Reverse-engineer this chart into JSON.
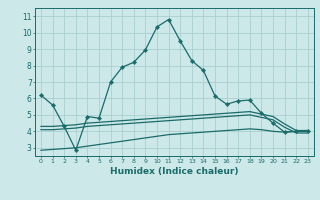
{
  "xlabel": "Humidex (Indice chaleur)",
  "bg_color": "#cce8e8",
  "grid_color": "#aacfcf",
  "line_color": "#1a6b6b",
  "xlim": [
    -0.5,
    23.5
  ],
  "ylim": [
    2.5,
    11.5
  ],
  "xticks": [
    0,
    1,
    2,
    3,
    4,
    5,
    6,
    7,
    8,
    9,
    10,
    11,
    12,
    13,
    14,
    15,
    16,
    17,
    18,
    19,
    20,
    21,
    22,
    23
  ],
  "yticks": [
    3,
    4,
    5,
    6,
    7,
    8,
    9,
    10,
    11
  ],
  "series1_x": [
    0,
    1,
    2,
    3,
    4,
    5,
    6,
    7,
    8,
    9,
    10,
    11,
    12,
    13,
    14,
    15,
    16,
    17,
    18,
    19,
    20,
    21,
    22,
    23
  ],
  "series1_y": [
    6.2,
    5.6,
    4.3,
    2.85,
    4.9,
    4.8,
    7.0,
    7.9,
    8.2,
    8.95,
    10.35,
    10.8,
    9.5,
    8.3,
    7.7,
    6.15,
    5.65,
    5.85,
    5.9,
    5.1,
    4.5,
    3.95,
    4.0,
    4.05
  ],
  "series2_x": [
    0,
    1,
    2,
    3,
    4,
    5,
    6,
    7,
    8,
    9,
    10,
    11,
    12,
    13,
    14,
    15,
    16,
    17,
    18,
    19,
    20,
    21,
    22,
    23
  ],
  "series2_y": [
    4.3,
    4.3,
    4.35,
    4.4,
    4.5,
    4.55,
    4.6,
    4.65,
    4.7,
    4.75,
    4.8,
    4.85,
    4.9,
    4.95,
    5.0,
    5.05,
    5.1,
    5.15,
    5.2,
    5.05,
    4.9,
    4.45,
    4.05,
    4.05
  ],
  "series3_x": [
    0,
    1,
    2,
    3,
    4,
    5,
    6,
    7,
    8,
    9,
    10,
    11,
    12,
    13,
    14,
    15,
    16,
    17,
    18,
    19,
    20,
    21,
    22,
    23
  ],
  "series3_y": [
    4.1,
    4.1,
    4.15,
    4.2,
    4.3,
    4.35,
    4.4,
    4.45,
    4.5,
    4.55,
    4.6,
    4.65,
    4.7,
    4.75,
    4.8,
    4.85,
    4.9,
    4.95,
    5.0,
    4.85,
    4.7,
    4.25,
    3.9,
    3.9
  ],
  "series4_x": [
    0,
    1,
    2,
    3,
    4,
    5,
    6,
    7,
    8,
    9,
    10,
    11,
    12,
    13,
    14,
    15,
    16,
    17,
    18,
    19,
    20,
    21,
    22,
    23
  ],
  "series4_y": [
    2.85,
    2.9,
    2.95,
    3.0,
    3.1,
    3.2,
    3.3,
    3.4,
    3.5,
    3.6,
    3.7,
    3.8,
    3.85,
    3.9,
    3.95,
    4.0,
    4.05,
    4.1,
    4.15,
    4.1,
    4.0,
    3.95,
    4.0,
    4.0
  ]
}
